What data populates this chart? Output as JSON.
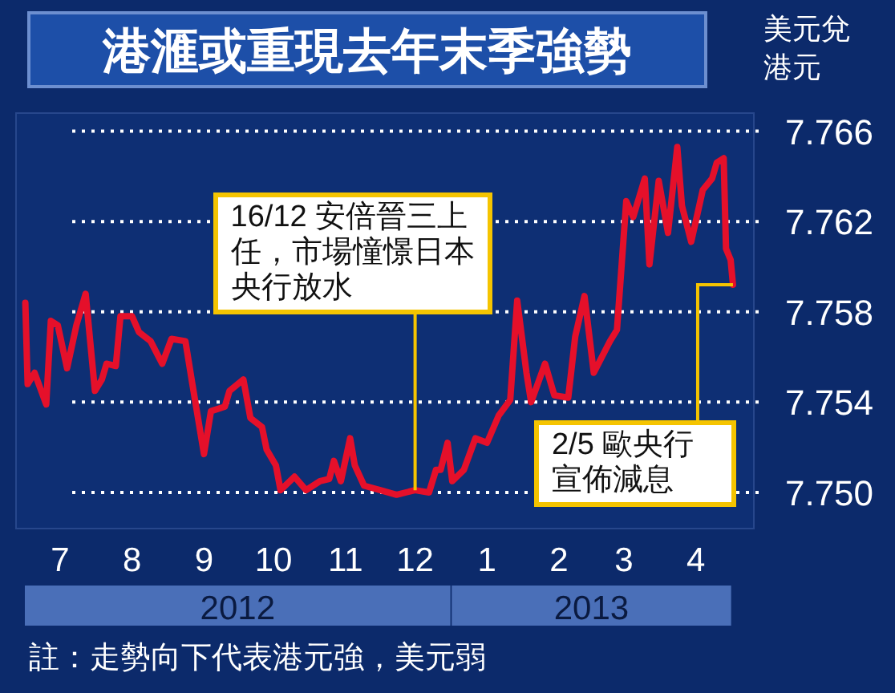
{
  "chart_data": {
    "type": "line",
    "title": "港滙或重現去年末季強勢",
    "ylabel": "美元兌港元",
    "x": [
      "2012-07-01",
      "2012-07-02",
      "2012-07-05",
      "2012-07-10",
      "2012-07-12",
      "2012-07-15",
      "2012-07-19",
      "2012-07-23",
      "2012-07-27",
      "2012-07-31",
      "2012-08-03",
      "2012-08-05",
      "2012-08-09",
      "2012-08-11",
      "2012-08-16",
      "2012-08-19",
      "2012-08-24",
      "2012-08-29",
      "2012-09-02",
      "2012-09-08",
      "2012-09-11",
      "2012-09-16",
      "2012-09-19",
      "2012-09-25",
      "2012-09-27",
      "2012-10-03",
      "2012-10-06",
      "2012-10-11",
      "2012-10-13",
      "2012-10-17",
      "2012-10-19",
      "2012-10-25",
      "2012-10-30",
      "2012-11-05",
      "2012-11-09",
      "2012-11-11",
      "2012-11-14",
      "2012-11-18",
      "2012-11-20",
      "2012-11-24",
      "2012-12-01",
      "2012-12-08",
      "2012-12-16",
      "2012-12-22",
      "2012-12-25",
      "2012-12-27",
      "2012-12-30",
      "2013-01-01",
      "2013-01-06",
      "2013-01-11",
      "2013-01-16",
      "2013-01-21",
      "2013-01-26",
      "2013-01-29",
      "2013-02-02",
      "2013-02-04",
      "2013-02-10",
      "2013-02-14",
      "2013-02-20",
      "2013-02-23",
      "2013-02-27",
      "2013-03-03",
      "2013-03-10",
      "2013-03-13",
      "2013-03-17",
      "2013-03-20",
      "2013-03-25",
      "2013-03-27",
      "2013-03-31",
      "2013-04-04",
      "2013-04-08",
      "2013-04-10",
      "2013-04-14",
      "2013-04-19",
      "2013-04-23",
      "2013-04-25",
      "2013-04-28",
      "2013-04-29",
      "2013-05-01",
      "2013-05-02"
    ],
    "series": [
      {
        "color": "#e5102a",
        "values": [
          7.7584,
          7.7548,
          7.7553,
          7.7539,
          7.7576,
          7.7574,
          7.7555,
          7.7574,
          7.7588,
          7.7545,
          7.755,
          7.7557,
          7.7556,
          7.7578,
          7.7578,
          7.7571,
          7.7567,
          7.7557,
          7.7568,
          7.7567,
          7.7548,
          7.7517,
          7.7536,
          7.7538,
          7.7545,
          7.755,
          7.7533,
          7.7529,
          7.7519,
          7.7512,
          7.7501,
          7.7507,
          7.7501,
          7.7505,
          7.7506,
          7.7514,
          7.7505,
          7.7524,
          7.7512,
          7.7503,
          7.7501,
          7.7499,
          7.7501,
          7.75,
          7.751,
          7.751,
          7.7522,
          7.7505,
          7.751,
          7.7524,
          7.7522,
          7.7534,
          7.7541,
          7.7585,
          7.7553,
          7.754,
          7.7557,
          7.7543,
          7.7542,
          7.7569,
          7.7587,
          7.7553,
          7.7567,
          7.7572,
          7.7629,
          7.7622,
          7.7639,
          7.7601,
          7.7638,
          7.7615,
          7.7653,
          7.7627,
          7.7611,
          7.7634,
          7.7639,
          7.7646,
          7.7648,
          7.7608,
          7.7603,
          7.7592
        ]
      }
    ],
    "xlim": [
      "2012-06-27",
      "2013-05-11"
    ],
    "xticks": [
      {
        "value": "2012-07-16",
        "label": "7"
      },
      {
        "value": "2012-08-16",
        "label": "8"
      },
      {
        "value": "2012-09-16",
        "label": "9"
      },
      {
        "value": "2012-10-16",
        "label": "10"
      },
      {
        "value": "2012-11-16",
        "label": "11"
      },
      {
        "value": "2012-12-16",
        "label": "12"
      },
      {
        "value": "2013-01-16",
        "label": "1"
      },
      {
        "value": "2013-02-16",
        "label": "2"
      },
      {
        "value": "2013-03-16",
        "label": "3"
      },
      {
        "value": "2013-04-16",
        "label": "4"
      }
    ],
    "ylim": [
      7.7484,
      7.7668
    ],
    "yticks": [
      {
        "value": 7.75,
        "label": "7.750"
      },
      7.754,
      7.758,
      7.762,
      7.766
    ],
    "grid": "y",
    "marker": "none",
    "line_style": "solid",
    "annotations": [
      {
        "text": "16/12 安倍晉三上任，市場憧憬日本央行放水",
        "x": "2012-12-16",
        "y": 7.7501
      },
      {
        "text": "2/5 歐央行宣佈減息",
        "x": "2013-05-02",
        "y": 7.7592
      },
      "2012",
      "2013",
      "註：走勢向下代表港元強，美元弱"
    ]
  }
}
